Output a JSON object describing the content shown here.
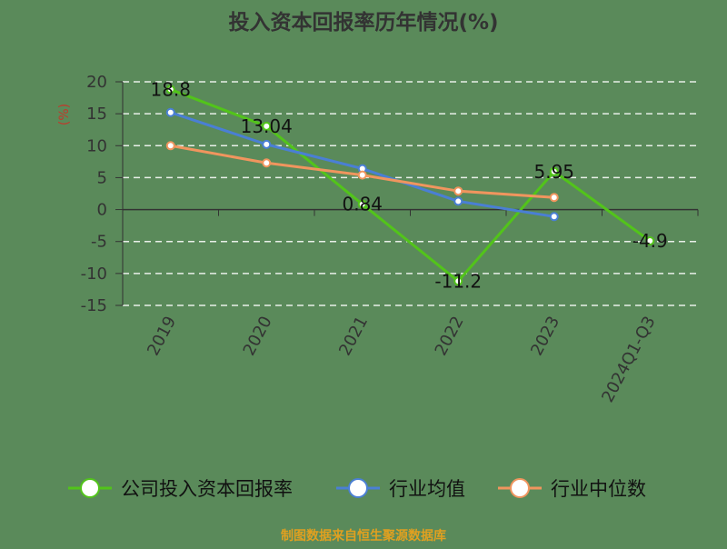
{
  "title": "投入资本回报率历年情况(%)",
  "unit_label": "(%)",
  "source": "制图数据来自恒生聚源数据库",
  "colors": {
    "background": "#5a8a5a",
    "company": "#52c41a",
    "industry_avg": "#4a7fd4",
    "industry_median": "#f0955e",
    "grid": "#e8efe8",
    "axis": "#333333",
    "unit": "#c0392b",
    "source": "#e0a020"
  },
  "chart_data": {
    "type": "line",
    "title": "投入资本回报率历年情况(%)",
    "ylabel": "(%)",
    "categories": [
      "2019",
      "2020",
      "2021",
      "2022",
      "2023",
      "2024Q1-Q3"
    ],
    "ylim": [
      -15,
      20
    ],
    "yticks": [
      20,
      15,
      10,
      5,
      0,
      -5,
      -10,
      -15
    ],
    "grid": true,
    "legend_position": "bottom",
    "series": [
      {
        "name": "公司投入资本回报率",
        "color": "#52c41a",
        "values": [
          18.8,
          13.04,
          0.84,
          -11.2,
          5.95,
          -4.9
        ],
        "data_labels": [
          "18.8",
          "13.04",
          "0.84",
          "-11.2",
          "5.95",
          "-4.9"
        ]
      },
      {
        "name": "行业均值",
        "color": "#4a7fd4",
        "values": [
          15.2,
          10.2,
          6.4,
          1.3,
          -1.1,
          null
        ]
      },
      {
        "name": "行业中位数",
        "color": "#f0955e",
        "values": [
          10.0,
          7.3,
          5.4,
          2.9,
          1.9,
          null
        ]
      }
    ]
  }
}
